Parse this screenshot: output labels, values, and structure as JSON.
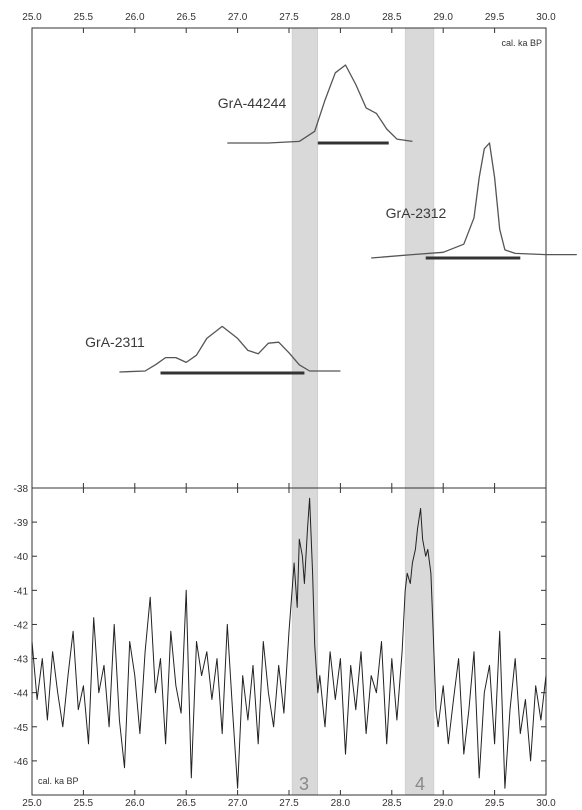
{
  "chart_data": [
    {
      "type": "line",
      "panel": "top",
      "xlim": [
        25.0,
        30.0
      ],
      "x_tick_labels": [
        "25.0",
        "25.5",
        "26.0",
        "26.5",
        "27.0",
        "27.5",
        "28.0",
        "28.5",
        "29.0",
        "29.5",
        "30.0"
      ],
      "unit_label": "cal. ka BP",
      "series": [
        {
          "name": "GrA-44244",
          "x": [
            26.9,
            27.3,
            27.6,
            27.75,
            27.85,
            27.95,
            28.05,
            28.15,
            28.25,
            28.35,
            28.45,
            28.55,
            28.7
          ],
          "y": [
            0,
            0,
            0.02,
            0.15,
            0.55,
            0.9,
            1.0,
            0.75,
            0.45,
            0.38,
            0.18,
            0.05,
            0.02
          ],
          "range": [
            27.78,
            28.47
          ]
        },
        {
          "name": "GrA-2312",
          "x": [
            28.3,
            28.7,
            29.0,
            29.2,
            29.3,
            29.35,
            29.4,
            29.45,
            29.5,
            29.55,
            29.6,
            29.7,
            30.0,
            30.3
          ],
          "y": [
            0,
            0.03,
            0.05,
            0.12,
            0.35,
            0.7,
            0.95,
            1.0,
            0.7,
            0.25,
            0.07,
            0.04,
            0.03,
            0.03
          ],
          "range": [
            28.83,
            29.75
          ]
        },
        {
          "name": "GrA-2311",
          "x": [
            25.85,
            26.1,
            26.2,
            26.3,
            26.4,
            26.5,
            26.6,
            26.7,
            26.85,
            27.0,
            27.1,
            27.2,
            27.3,
            27.4,
            27.5,
            27.6,
            27.7,
            28.0
          ],
          "y": [
            0,
            0.02,
            0.15,
            0.3,
            0.3,
            0.2,
            0.35,
            0.7,
            0.95,
            0.7,
            0.45,
            0.38,
            0.6,
            0.62,
            0.4,
            0.15,
            0.02,
            0.02
          ],
          "range": [
            26.25,
            27.65
          ]
        }
      ],
      "shaded_bands": [
        [
          27.53,
          27.78
        ],
        [
          28.63,
          28.91
        ]
      ]
    },
    {
      "type": "line",
      "panel": "bottom",
      "xlim": [
        25.0,
        30.0
      ],
      "ylim": [
        -47,
        -38
      ],
      "x_tick_labels": [
        "25.0",
        "25.5",
        "26.0",
        "26.5",
        "27.0",
        "27.5",
        "28.0",
        "28.5",
        "29.0",
        "29.5",
        "30.0"
      ],
      "y_tick_labels": [
        "-38",
        "-39",
        "-40",
        "-41",
        "-42",
        "-43",
        "-44",
        "-45",
        "-46"
      ],
      "unit_label": "cal. ka BP",
      "event_labels": [
        "3",
        "4"
      ],
      "shaded_bands": [
        [
          27.53,
          27.78
        ],
        [
          28.63,
          28.91
        ]
      ],
      "series": [
        {
          "x": [
            25.0,
            25.05,
            25.1,
            25.15,
            25.2,
            25.25,
            25.3,
            25.35,
            25.4,
            25.45,
            25.5,
            25.55,
            25.6,
            25.65,
            25.7,
            25.75,
            25.8,
            25.85,
            25.9,
            25.95,
            26.0,
            26.05,
            26.1,
            26.15,
            26.2,
            26.25,
            26.3,
            26.35,
            26.4,
            26.45,
            26.5,
            26.55,
            26.6,
            26.65,
            26.7,
            26.75,
            26.8,
            26.85,
            26.9,
            26.95,
            27.0,
            27.05,
            27.1,
            27.15,
            27.2,
            27.25,
            27.3,
            27.35,
            27.4,
            27.45,
            27.5,
            27.53,
            27.55,
            27.58,
            27.6,
            27.63,
            27.65,
            27.68,
            27.7,
            27.73,
            27.75,
            27.78,
            27.8,
            27.85,
            27.9,
            27.95,
            28.0,
            28.05,
            28.1,
            28.15,
            28.2,
            28.25,
            28.3,
            28.35,
            28.4,
            28.45,
            28.5,
            28.55,
            28.6,
            28.63,
            28.65,
            28.68,
            28.7,
            28.73,
            28.75,
            28.78,
            28.8,
            28.83,
            28.85,
            28.88,
            28.9,
            28.93,
            28.95,
            29.0,
            29.05,
            29.1,
            29.15,
            29.2,
            29.25,
            29.3,
            29.35,
            29.4,
            29.45,
            29.5,
            29.55,
            29.6,
            29.65,
            29.7,
            29.75,
            29.8,
            29.85,
            29.9,
            29.95,
            30.0
          ],
          "y": [
            -42.5,
            -44.2,
            -43.0,
            -44.8,
            -42.8,
            -44.0,
            -45.0,
            -43.5,
            -42.2,
            -44.5,
            -43.8,
            -45.5,
            -41.8,
            -44.0,
            -43.2,
            -45.0,
            -42.0,
            -44.8,
            -46.2,
            -42.5,
            -43.5,
            -45.2,
            -42.8,
            -41.2,
            -44.0,
            -43.0,
            -45.5,
            -42.2,
            -43.8,
            -44.6,
            -41.0,
            -46.5,
            -42.5,
            -43.5,
            -42.8,
            -44.2,
            -43.0,
            -45.2,
            -42.0,
            -44.5,
            -46.8,
            -43.5,
            -44.8,
            -43.2,
            -45.5,
            -42.5,
            -44.0,
            -45.0,
            -43.2,
            -44.6,
            -42.2,
            -41.0,
            -40.2,
            -41.5,
            -39.5,
            -40.0,
            -40.8,
            -39.2,
            -38.3,
            -40.5,
            -42.6,
            -44.0,
            -43.5,
            -45.0,
            -42.8,
            -44.2,
            -43.0,
            -45.8,
            -43.2,
            -44.5,
            -42.8,
            -45.2,
            -43.5,
            -44.0,
            -42.5,
            -45.5,
            -43.0,
            -44.8,
            -42.8,
            -41.0,
            -40.5,
            -40.8,
            -40.2,
            -39.8,
            -39.2,
            -38.6,
            -39.5,
            -40.0,
            -39.8,
            -40.5,
            -42.0,
            -44.5,
            -45.0,
            -43.8,
            -45.5,
            -44.2,
            -43.0,
            -45.8,
            -44.5,
            -42.8,
            -46.5,
            -44.0,
            -43.2,
            -45.5,
            -42.2,
            -46.8,
            -44.5,
            -43.0,
            -45.2,
            -44.2,
            -46.0,
            -43.8,
            -44.8,
            -43.5
          ]
        }
      ]
    }
  ]
}
